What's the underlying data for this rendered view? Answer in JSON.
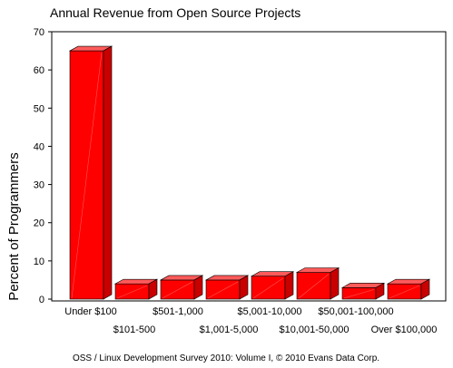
{
  "chart_data": {
    "type": "bar",
    "title": "Annual Revenue from Open Source Projects",
    "ylabel": "Percent of Programmers",
    "xlabel": "",
    "ylim": [
      0,
      70
    ],
    "yticks": [
      0,
      10,
      20,
      30,
      40,
      50,
      60,
      70
    ],
    "categories": [
      "Under $100",
      "$101-500",
      "$501-1,000",
      "$1,001-5,000",
      "$5,001-10,000",
      "$10,001-50,000",
      "$50,001-100,000",
      "Over $100,000"
    ],
    "values": [
      65,
      4,
      5,
      5,
      6,
      7,
      3,
      4
    ],
    "bar_color": "#ff0000",
    "bar_top_color": "#ff5a5a",
    "bar_side_color": "#c80000",
    "grid": false,
    "legend": "none"
  },
  "footer": {
    "source": "OSS / Linux Development Survey 2010: Volume I, © 2010 Evans Data Corp."
  }
}
